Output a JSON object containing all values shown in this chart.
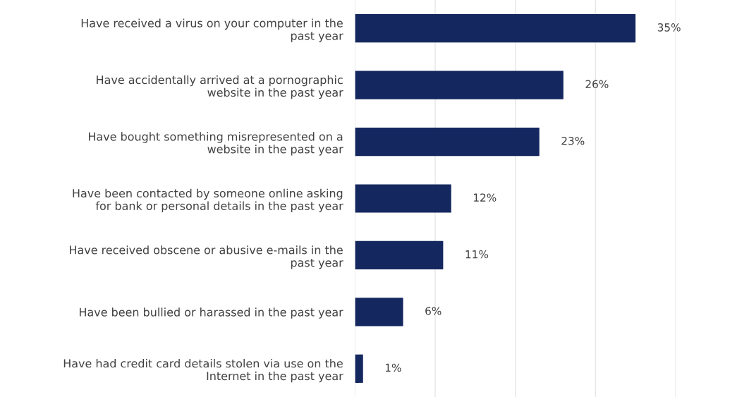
{
  "chart_data": {
    "type": "bar",
    "orientation": "horizontal",
    "categories": [
      "Have received a virus on your computer in the\npast year",
      "Have accidentally arrived at a pornographic\nwebsite in the past year",
      "Have bought something misrepresented on a\nwebsite in the past year",
      "Have been contacted by someone online asking\nfor bank or personal details in the past year",
      "Have received obscene or abusive e-mails in the\npast year",
      "Have been bullied or harassed in the past year",
      "Have had credit card details stolen via use on the\nInternet in the past year"
    ],
    "values": [
      35,
      26,
      23,
      12,
      11,
      6,
      1
    ],
    "value_labels": [
      "35%",
      "26%",
      "23%",
      "12%",
      "11%",
      "6%",
      "1%"
    ],
    "color": "#14275e",
    "xlim": [
      0,
      40
    ],
    "xticks": [
      {
        "value": 0,
        "label": null
      },
      {
        "value": 10,
        "label": null
      },
      {
        "value": 20,
        "label": null
      },
      {
        "value": 30,
        "label": null
      },
      {
        "value": 40,
        "label": null
      }
    ],
    "grid": "x",
    "tick_labels": "y"
  }
}
